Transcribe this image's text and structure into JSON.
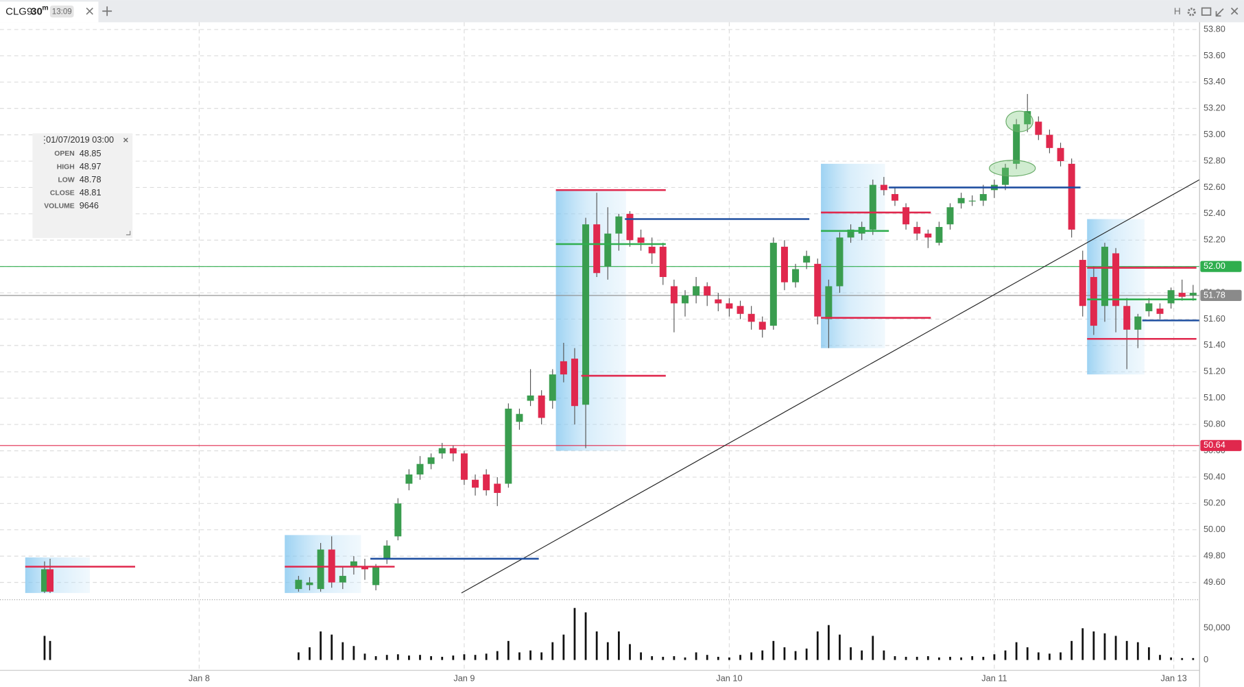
{
  "tab": {
    "symbol": "CLG9",
    "interval": "30",
    "unit": "m",
    "time": "13:09",
    "toolbar_letter": "H"
  },
  "tooltip": {
    "time": "01/07/2019 03:00",
    "rows": [
      {
        "label": "OPEN",
        "value": 48.85
      },
      {
        "label": "HIGH",
        "value": 48.97
      },
      {
        "label": "LOW",
        "value": 48.78
      },
      {
        "label": "CLOSE",
        "value": 48.81
      },
      {
        "label": "VOLUME",
        "value": 9646
      }
    ]
  },
  "chart_data": {
    "type": "candlestick",
    "up_color": "#3a9d4f",
    "down_color": "#e0284d",
    "volume_color": "#111111",
    "grid": true,
    "x": [
      20,
      21,
      66,
      68,
      70,
      72,
      74,
      76,
      78,
      80,
      82,
      84,
      86,
      88,
      90,
      92,
      94,
      96,
      98,
      100,
      102,
      104,
      106,
      108,
      110,
      112,
      114,
      116,
      118,
      120,
      122,
      124,
      126,
      128,
      130,
      132,
      134,
      136,
      138,
      140,
      142,
      144,
      146,
      148,
      150,
      152,
      154,
      156,
      158,
      160,
      162,
      164,
      166,
      168,
      170,
      172,
      174,
      176,
      178,
      180,
      182,
      184,
      186,
      188,
      190,
      192,
      194,
      196,
      198,
      200,
      202,
      204,
      206,
      208,
      210,
      212,
      214,
      216,
      218,
      220,
      222,
      224,
      226,
      228
    ],
    "open": [
      49.53,
      49.7,
      49.55,
      49.58,
      49.55,
      49.85,
      49.6,
      49.72,
      49.72,
      49.58,
      49.78,
      49.95,
      50.35,
      50.42,
      50.5,
      50.58,
      50.62,
      50.58,
      50.38,
      50.42,
      50.35,
      50.35,
      50.82,
      50.98,
      51.02,
      50.98,
      51.28,
      51.3,
      50.95,
      52.32,
      52.0,
      52.25,
      52.4,
      52.22,
      52.15,
      52.15,
      51.85,
      51.72,
      51.78,
      51.85,
      51.75,
      51.72,
      51.7,
      51.64,
      51.58,
      51.55,
      52.15,
      51.88,
      52.03,
      52.02,
      51.6,
      51.85,
      52.22,
      52.25,
      52.28,
      52.62,
      52.55,
      52.45,
      52.3,
      52.25,
      52.18,
      52.32,
      52.48,
      52.5,
      52.5,
      52.58,
      52.62,
      52.78,
      53.08,
      53.1,
      53.0,
      52.9,
      52.78,
      52.05,
      51.92,
      51.7,
      52.1,
      51.7,
      51.52,
      51.66,
      51.68,
      51.72,
      51.8,
      51.78
    ],
    "high": [
      49.76,
      49.78,
      49.65,
      49.64,
      49.9,
      49.95,
      49.72,
      49.8,
      49.78,
      49.74,
      49.92,
      50.24,
      50.46,
      50.56,
      50.58,
      50.66,
      50.64,
      50.6,
      50.42,
      50.46,
      50.4,
      50.96,
      50.92,
      51.22,
      51.06,
      51.22,
      51.42,
      51.38,
      52.37,
      52.56,
      52.45,
      52.4,
      52.42,
      52.28,
      52.22,
      52.18,
      51.9,
      51.82,
      51.92,
      51.88,
      51.8,
      51.76,
      51.74,
      51.7,
      51.62,
      52.22,
      52.2,
      52.02,
      52.12,
      52.06,
      51.9,
      52.26,
      52.32,
      52.34,
      52.66,
      52.68,
      52.6,
      52.48,
      52.34,
      52.28,
      52.34,
      52.48,
      52.56,
      52.54,
      52.62,
      52.66,
      52.78,
      53.12,
      53.31,
      53.14,
      53.04,
      52.94,
      52.82,
      52.12,
      52.0,
      52.18,
      52.14,
      51.76,
      51.64,
      51.76,
      51.72,
      51.84,
      51.9,
      51.86
    ],
    "low": [
      49.52,
      49.52,
      49.53,
      49.54,
      49.53,
      49.56,
      49.55,
      49.66,
      49.62,
      49.54,
      49.74,
      49.92,
      50.3,
      50.38,
      50.46,
      50.54,
      50.52,
      50.34,
      50.26,
      50.26,
      50.18,
      50.32,
      50.76,
      50.94,
      50.8,
      50.92,
      51.12,
      50.8,
      50.62,
      51.92,
      51.9,
      52.12,
      52.15,
      52.12,
      52.02,
      51.86,
      51.5,
      51.62,
      51.72,
      51.7,
      51.66,
      51.62,
      51.6,
      51.52,
      51.46,
      51.52,
      51.82,
      51.84,
      51.98,
      51.56,
      51.38,
      51.8,
      52.18,
      52.2,
      52.24,
      52.54,
      52.46,
      52.28,
      52.2,
      52.14,
      52.16,
      52.28,
      52.44,
      52.46,
      52.46,
      52.52,
      52.58,
      52.74,
      53.02,
      52.96,
      52.86,
      52.76,
      52.22,
      51.62,
      51.48,
      51.58,
      51.5,
      51.22,
      51.38,
      51.62,
      51.6,
      51.68,
      51.74,
      51.74
    ],
    "close": [
      49.7,
      49.53,
      49.62,
      49.6,
      49.85,
      49.6,
      49.65,
      49.76,
      49.7,
      49.72,
      49.88,
      50.2,
      50.42,
      50.5,
      50.55,
      50.62,
      50.58,
      50.38,
      50.32,
      50.3,
      50.28,
      50.92,
      50.88,
      51.02,
      50.85,
      51.18,
      51.18,
      50.94,
      52.32,
      51.95,
      52.25,
      52.38,
      52.2,
      52.18,
      52.1,
      51.92,
      51.72,
      51.78,
      51.85,
      51.78,
      51.72,
      51.68,
      51.64,
      51.58,
      51.52,
      52.18,
      51.88,
      51.98,
      52.08,
      51.62,
      51.85,
      52.22,
      52.28,
      52.3,
      52.62,
      52.58,
      52.5,
      52.32,
      52.25,
      52.22,
      52.3,
      52.45,
      52.52,
      52.5,
      52.55,
      52.62,
      52.75,
      53.08,
      53.18,
      53.0,
      52.9,
      52.8,
      52.28,
      51.7,
      51.55,
      52.15,
      51.7,
      51.52,
      51.62,
      51.72,
      51.64,
      51.82,
      51.77,
      51.8
    ],
    "volume": [
      38000,
      30000,
      12000,
      20000,
      45000,
      40000,
      28000,
      22000,
      10000,
      6000,
      8000,
      9000,
      7000,
      8000,
      6000,
      5000,
      7000,
      9000,
      8000,
      10000,
      14000,
      30000,
      12000,
      15000,
      12000,
      28000,
      40000,
      82000,
      75000,
      45000,
      28000,
      45000,
      25000,
      12000,
      6000,
      5000,
      6000,
      4000,
      12000,
      8000,
      5000,
      4000,
      8000,
      12000,
      15000,
      30000,
      20000,
      14000,
      18000,
      45000,
      55000,
      40000,
      20000,
      15000,
      38000,
      15000,
      6000,
      5000,
      5000,
      6000,
      4000,
      5000,
      4000,
      6000,
      5000,
      9000,
      15000,
      28000,
      20000,
      12000,
      10000,
      12000,
      30000,
      50000,
      45000,
      42000,
      38000,
      30000,
      28000,
      20000,
      8000,
      4000,
      3000,
      3000
    ],
    "xlim": [
      11.93,
      229.17
    ],
    "xticks": [
      {
        "value": 48,
        "label": "Jan 8"
      },
      {
        "value": 96,
        "label": "Jan 9"
      },
      {
        "value": 144,
        "label": "Jan 10"
      },
      {
        "value": 192,
        "label": "Jan 11"
      },
      {
        "value": 224.5,
        "label": "Jan 13"
      }
    ],
    "ylim": [
      49.475,
      53.855
    ],
    "yticks": [
      {
        "value": 49.6,
        "label": "49.60"
      },
      {
        "value": 49.8,
        "label": "49.80"
      },
      {
        "value": 50,
        "label": "50.00"
      },
      {
        "value": 50.2,
        "label": "50.20"
      },
      {
        "value": 50.4,
        "label": "50.40"
      },
      {
        "value": 50.6,
        "label": "50.60"
      },
      {
        "value": 50.8,
        "label": "50.80"
      },
      {
        "value": 51,
        "label": "51.00"
      },
      {
        "value": 51.2,
        "label": "51.20"
      },
      {
        "value": 51.4,
        "label": "51.40"
      },
      {
        "value": 51.6,
        "label": "51.60"
      },
      {
        "value": 51.8,
        "label": "51.80"
      },
      {
        "value": 52,
        "label": "52.00"
      },
      {
        "value": 52.2,
        "label": "52.20"
      },
      {
        "value": 52.4,
        "label": "52.40"
      },
      {
        "value": 52.6,
        "label": "52.60"
      },
      {
        "value": 52.8,
        "label": "52.80"
      },
      {
        "value": 53,
        "label": "53.00"
      },
      {
        "value": 53.2,
        "label": "53.20"
      },
      {
        "value": 53.4,
        "label": "53.40"
      },
      {
        "value": 53.6,
        "label": "53.60"
      },
      {
        "value": 53.8,
        "label": "53.80"
      }
    ],
    "volume_ylim": [
      0,
      93750
    ],
    "volume_yticks": [
      0,
      {
        "value": 50000,
        "label": "50,000"
      }
    ],
    "price_lines": [
      {
        "value": 52.0,
        "label": "52.00",
        "color": "#2fae4e"
      },
      {
        "value": 51.78,
        "label": "51.78",
        "color": "#8a8a8a"
      },
      {
        "value": 50.64,
        "label": "50.64",
        "color": "#e0284d"
      }
    ],
    "trendline": {
      "x": [
        95.5,
        229.2
      ],
      "y": [
        49.52,
        52.66
      ],
      "color": "#222222"
    },
    "profiles": [
      {
        "x": [
          16.5,
          28.2
        ],
        "y": [
          49.52,
          49.79
        ]
      },
      {
        "x": [
          63.5,
          77.3
        ],
        "y": [
          49.52,
          49.96
        ]
      },
      {
        "x": [
          112.6,
          125.3
        ],
        "y": [
          50.6,
          52.58
        ]
      },
      {
        "x": [
          160.6,
          172.2
        ],
        "y": [
          51.38,
          52.78
        ]
      },
      {
        "x": [
          208.8,
          219.2
        ],
        "y": [
          51.18,
          52.36
        ]
      }
    ],
    "levels": [
      {
        "x": [
          16.5,
          36.4
        ],
        "value": 49.72,
        "color": "#e0284d"
      },
      {
        "x": [
          63.5,
          83.4
        ],
        "value": 49.72,
        "color": "#e0284d"
      },
      {
        "x": [
          79.0,
          109.5
        ],
        "value": 49.78,
        "color": "#1f4fa0"
      },
      {
        "x": [
          112.6,
          132.5
        ],
        "value": 52.58,
        "color": "#e0284d"
      },
      {
        "x": [
          125.1,
          158.5
        ],
        "value": 52.36,
        "color": "#1f4fa0"
      },
      {
        "x": [
          112.6,
          132.5
        ],
        "value": 52.17,
        "color": "#2fae4e"
      },
      {
        "x": [
          117.2,
          132.5
        ],
        "value": 51.17,
        "color": "#e0284d"
      },
      {
        "x": [
          160.6,
          180.5
        ],
        "value": 52.41,
        "color": "#e0284d"
      },
      {
        "x": [
          160.6,
          172.9
        ],
        "value": 52.27,
        "color": "#2fae4e"
      },
      {
        "x": [
          160.6,
          180.5
        ],
        "value": 51.61,
        "color": "#e0284d"
      },
      {
        "x": [
          172.9,
          207.6
        ],
        "value": 52.6,
        "color": "#1f4fa0"
      },
      {
        "x": [
          208.8,
          228.6
        ],
        "value": 51.99,
        "color": "#e0284d"
      },
      {
        "x": [
          208.8,
          228.6
        ],
        "value": 51.75,
        "color": "#2fae4e"
      },
      {
        "x": [
          218.8,
          229.2
        ],
        "value": 51.59,
        "color": "#1f4fa0"
      },
      {
        "x": [
          208.8,
          228.6
        ],
        "value": 51.45,
        "color": "#e0284d"
      }
    ]
  }
}
